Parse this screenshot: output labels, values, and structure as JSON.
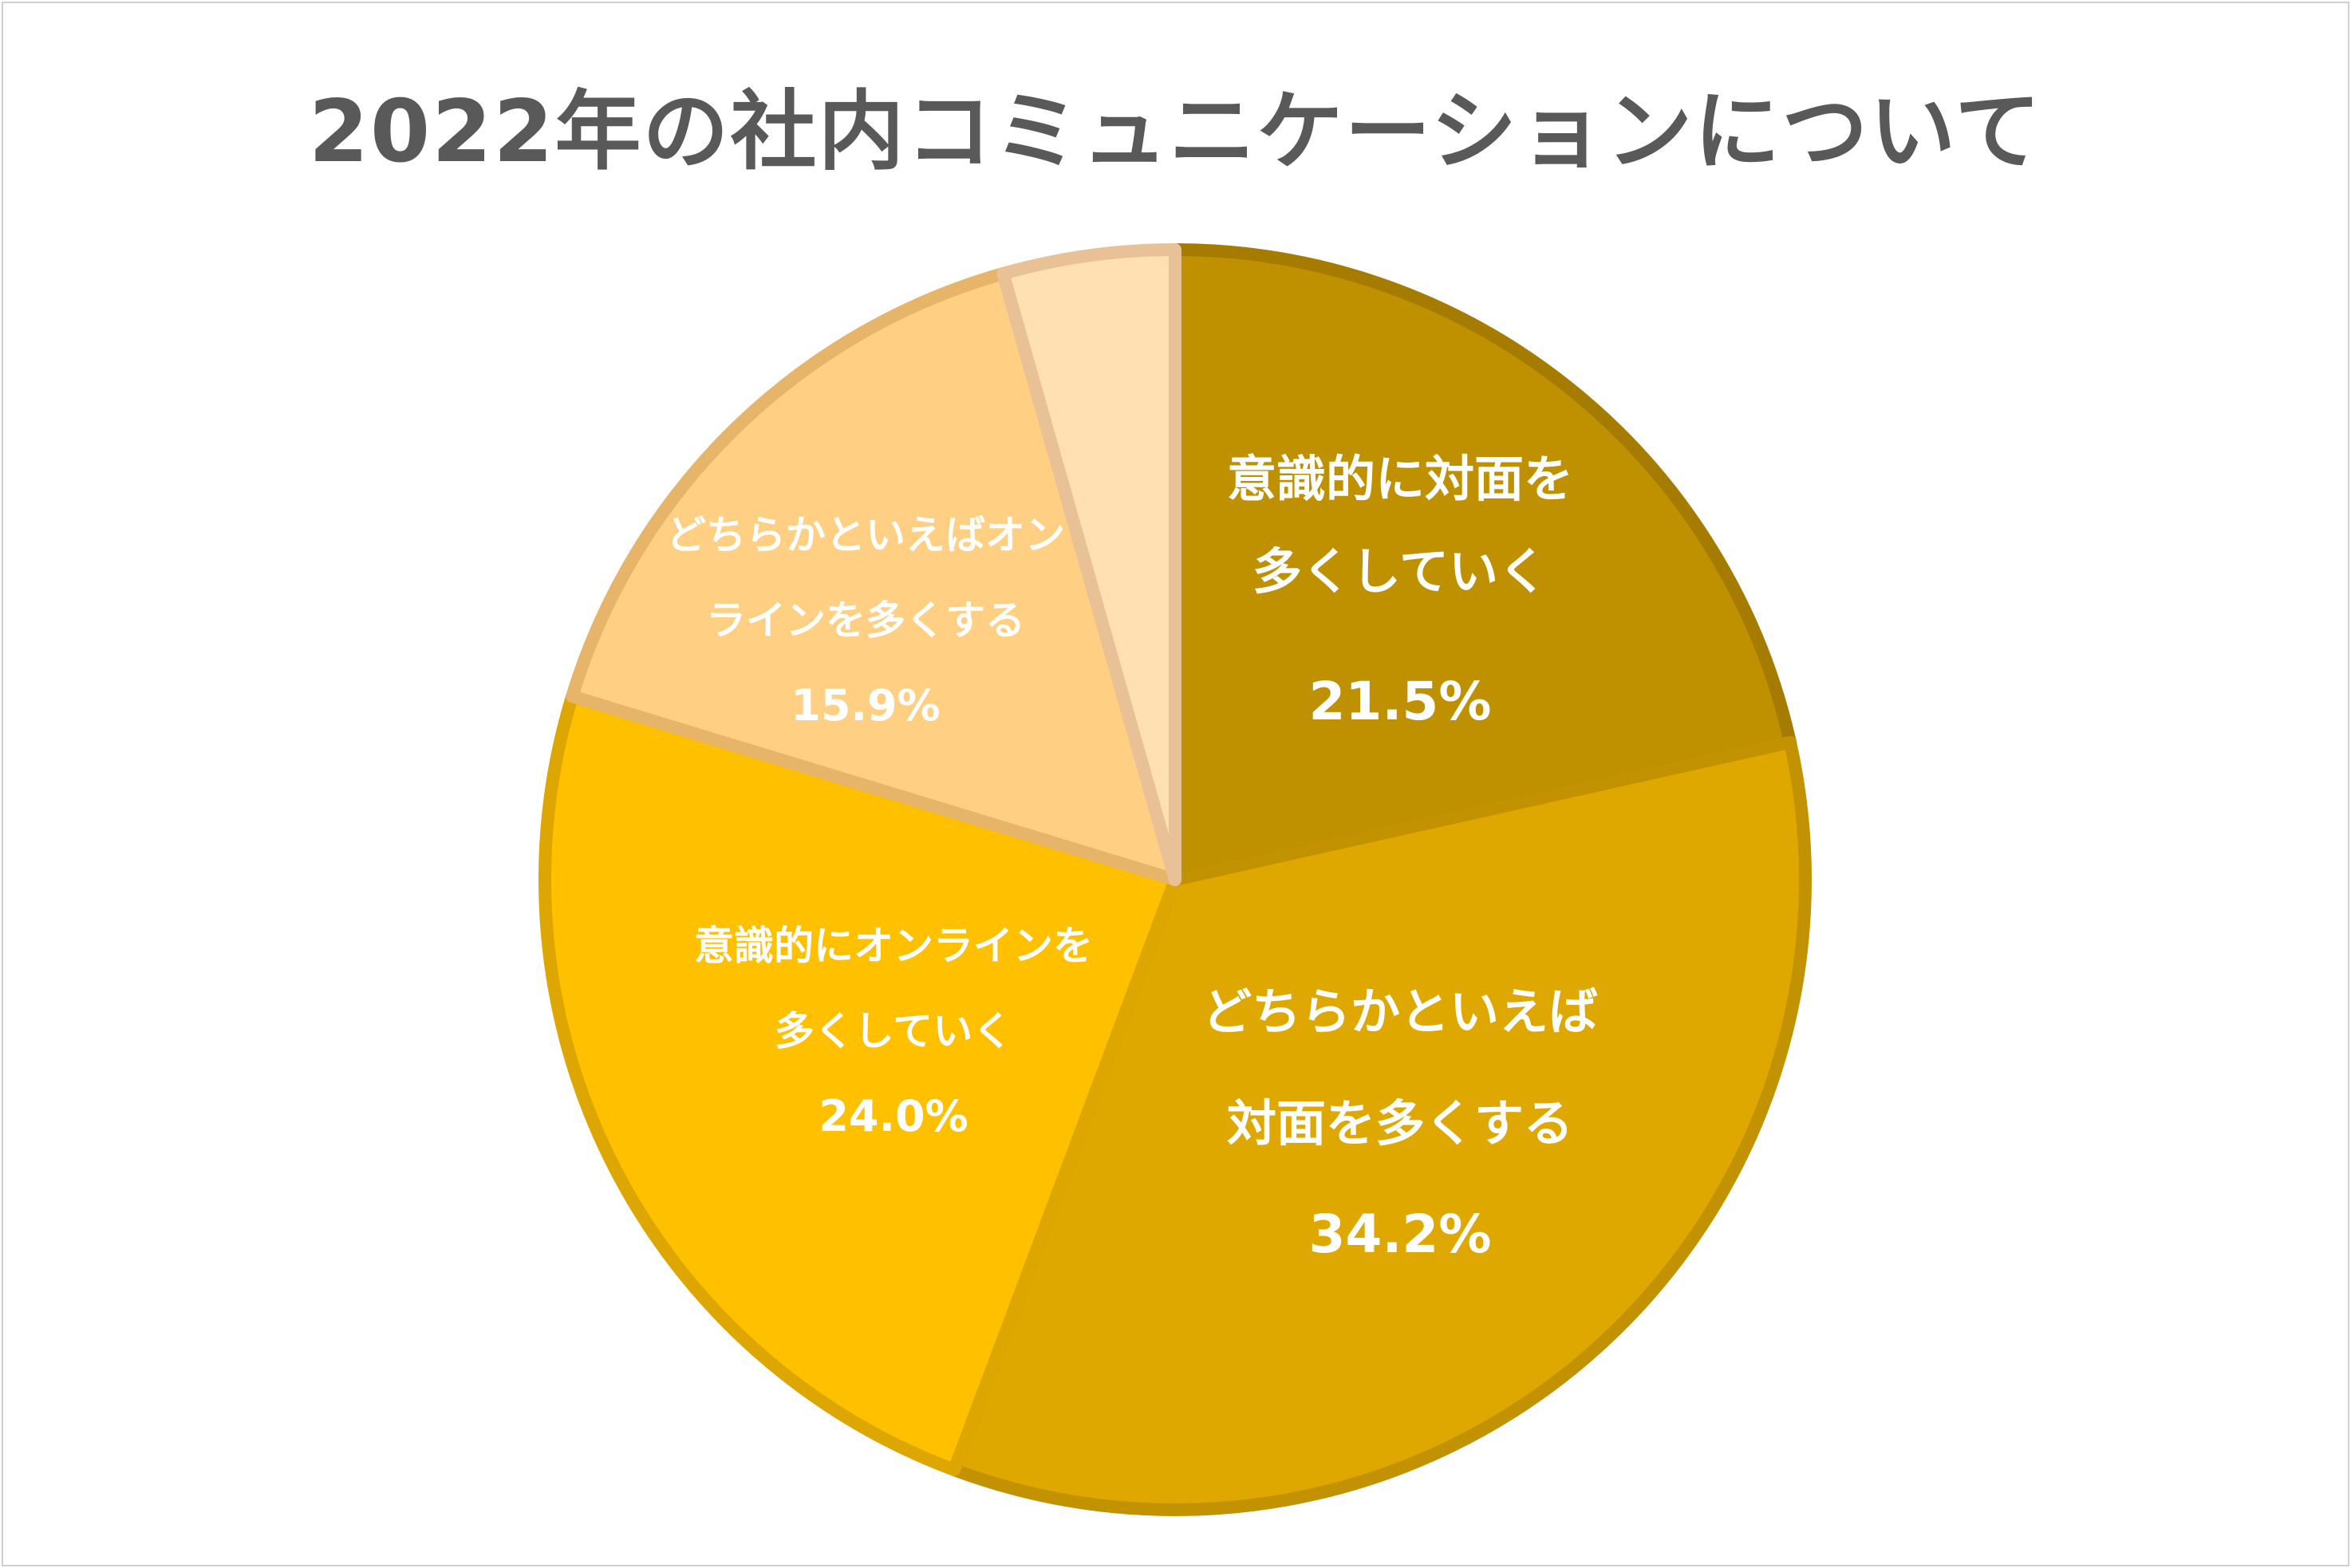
{
  "chart_data": {
    "type": "pie",
    "title": "2022年の社内コミュニケーションについて",
    "slices": [
      {
        "label_lines": [
          "意識的に対面を",
          "多くしていく"
        ],
        "value_label": "21.5%",
        "value": 21.5,
        "color": "#BF9000",
        "border": "#A67C00"
      },
      {
        "label_lines": [
          "どちらかといえば",
          "対面を多くする"
        ],
        "value_label": "34.2%",
        "value": 34.2,
        "color": "#DFA800",
        "border": "#C29200"
      },
      {
        "label_lines": [
          "意識的にオンラインを",
          "多くしていく"
        ],
        "value_label": "24.0%",
        "value": 24.0,
        "color": "#FFC000",
        "border": "#DDA600"
      },
      {
        "label_lines": [
          "どちらかといえばオン",
          "ラインを多くする"
        ],
        "value_label": "15.9%",
        "value": 15.9,
        "color": "#FFD083",
        "border": "#E6B56A"
      },
      {
        "label_lines": [],
        "value_label": "",
        "value": 4.4,
        "color": "#FFE0B2",
        "border": "#E8C296"
      }
    ]
  }
}
